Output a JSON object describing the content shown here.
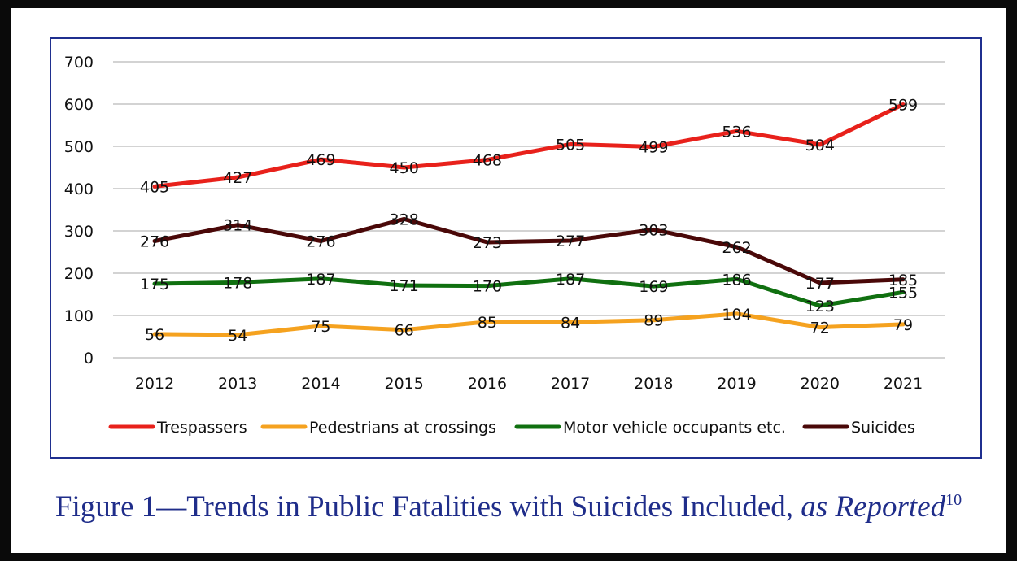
{
  "chart_data": {
    "type": "line",
    "categories": [
      "2012",
      "2013",
      "2014",
      "2015",
      "2016",
      "2017",
      "2018",
      "2019",
      "2020",
      "2021"
    ],
    "ylim": [
      0,
      700
    ],
    "yticks": [
      0,
      100,
      200,
      300,
      400,
      500,
      600,
      700
    ],
    "grid": true,
    "legend_position": "bottom",
    "series": [
      {
        "name": "Trespassers",
        "color": "#e8211b",
        "values": [
          405,
          427,
          469,
          450,
          468,
          505,
          499,
          536,
          504,
          599
        ]
      },
      {
        "name": "Pedestrians at crossings",
        "color": "#f5a21f",
        "values": [
          56,
          54,
          75,
          66,
          85,
          84,
          89,
          104,
          72,
          79
        ]
      },
      {
        "name": "Motor vehicle occupants etc.",
        "color": "#107010",
        "values": [
          175,
          178,
          187,
          171,
          170,
          187,
          169,
          186,
          123,
          155
        ]
      },
      {
        "name": "Suicides",
        "color": "#4a0808",
        "values": [
          276,
          314,
          276,
          328,
          273,
          277,
          303,
          262,
          177,
          185
        ]
      }
    ]
  },
  "caption": {
    "main": "Figure 1—Trends in Public Fatalities with Suicides Included, ",
    "italic": "as Reported",
    "superscript": "10"
  }
}
